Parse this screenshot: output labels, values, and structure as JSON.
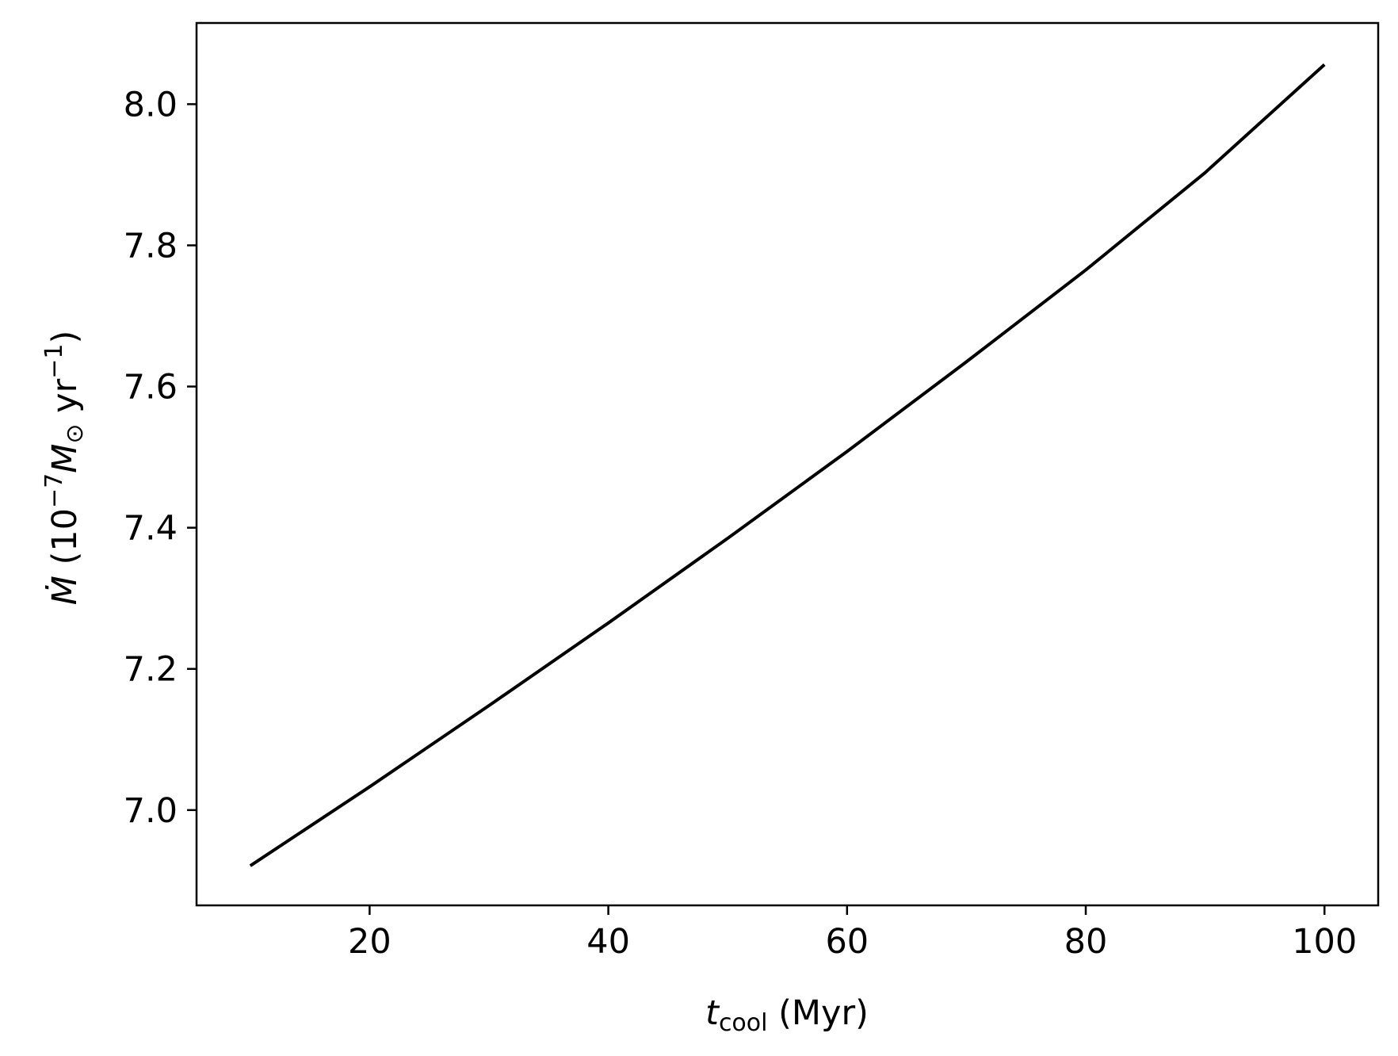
{
  "chart_data": {
    "type": "line",
    "title": "",
    "xlabel": {
      "symbol": "t",
      "subscript": "cool",
      "unit": " (Myr)"
    },
    "ylabel": {
      "symbol": "Ṁ",
      "open": " (10",
      "exp": "−7",
      "msym": "M",
      "msub": "⊙",
      "unit": " yr",
      "unit_exp": "−1",
      "close": ")"
    },
    "xlim": [
      5.5,
      104.5
    ],
    "ylim": [
      6.865,
      8.115
    ],
    "xticks": [
      20,
      40,
      60,
      80,
      100
    ],
    "xtick_labels": [
      "20",
      "40",
      "60",
      "80",
      "100"
    ],
    "yticks": [
      7.0,
      7.2,
      7.4,
      7.6,
      7.8,
      8.0
    ],
    "ytick_labels": [
      "7.0",
      "7.2",
      "7.4",
      "7.6",
      "7.8",
      "8.0"
    ],
    "grid": false,
    "series": [
      {
        "color": "#000000",
        "x": [
          10,
          20,
          30,
          40,
          50,
          60,
          70,
          80,
          90,
          100
        ],
        "y": [
          6.921,
          7.033,
          7.148,
          7.265,
          7.385,
          7.508,
          7.635,
          7.765,
          7.903,
          8.056
        ]
      }
    ]
  }
}
